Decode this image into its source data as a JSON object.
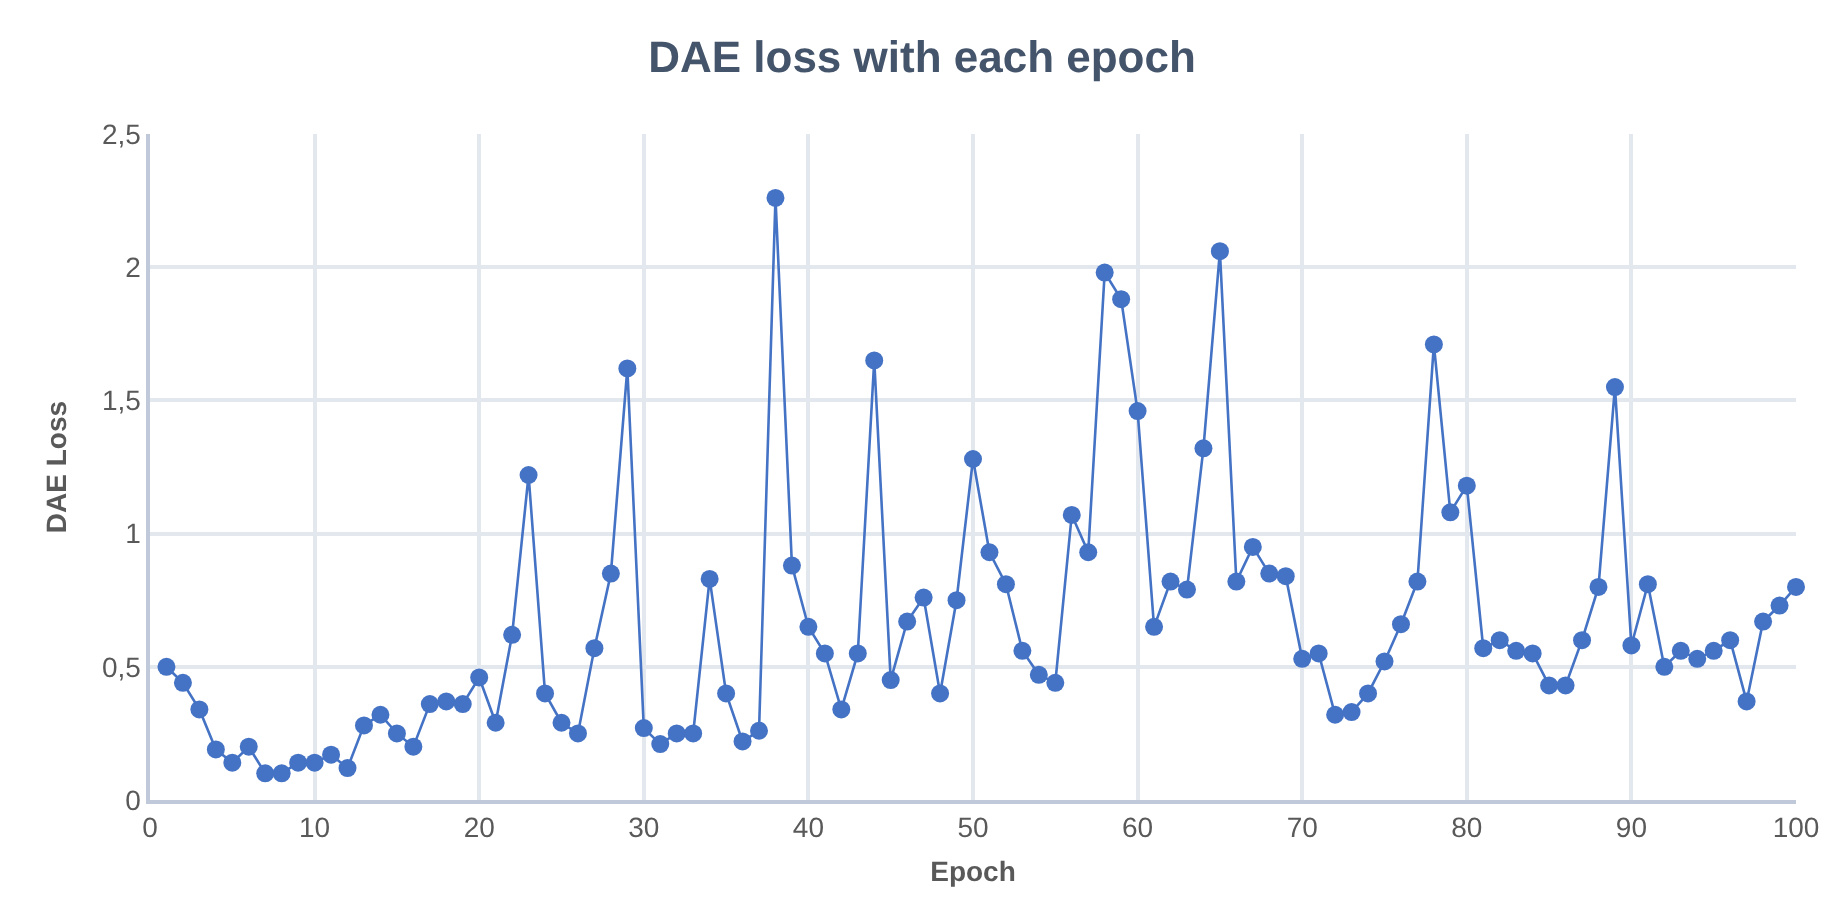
{
  "chart_data": {
    "type": "line",
    "title": "DAE loss with each epoch",
    "xlabel": "Epoch",
    "ylabel": "DAE Loss",
    "x": [
      1,
      2,
      3,
      4,
      5,
      6,
      7,
      8,
      9,
      10,
      11,
      12,
      13,
      14,
      15,
      16,
      17,
      18,
      19,
      20,
      21,
      22,
      23,
      24,
      25,
      26,
      27,
      28,
      29,
      30,
      31,
      32,
      33,
      34,
      35,
      36,
      37,
      38,
      39,
      40,
      41,
      42,
      43,
      44,
      45,
      46,
      47,
      48,
      49,
      50,
      51,
      52,
      53,
      54,
      55,
      56,
      57,
      58,
      59,
      60,
      61,
      62,
      63,
      64,
      65,
      66,
      67,
      68,
      69,
      70,
      71,
      72,
      73,
      74,
      75,
      76,
      77,
      78,
      79,
      80,
      81,
      82,
      83,
      84,
      85,
      86,
      87,
      88,
      89,
      90,
      91,
      92,
      93,
      94,
      95,
      96,
      97,
      98,
      99,
      100
    ],
    "series": [
      {
        "color": "#4472c4",
        "values": [
          0.5,
          0.44,
          0.34,
          0.19,
          0.14,
          0.2,
          0.1,
          0.1,
          0.14,
          0.14,
          0.17,
          0.12,
          0.28,
          0.32,
          0.25,
          0.2,
          0.36,
          0.37,
          0.36,
          0.46,
          0.29,
          0.62,
          1.22,
          0.4,
          0.29,
          0.25,
          0.57,
          0.85,
          1.62,
          0.27,
          0.21,
          0.25,
          0.25,
          0.83,
          0.4,
          0.22,
          0.26,
          2.26,
          0.88,
          0.65,
          0.55,
          0.34,
          0.55,
          1.65,
          0.45,
          0.67,
          0.76,
          0.4,
          0.75,
          1.28,
          0.93,
          0.81,
          0.56,
          0.47,
          0.44,
          1.07,
          0.93,
          1.98,
          1.88,
          1.46,
          0.65,
          0.82,
          0.79,
          1.32,
          2.06,
          0.82,
          0.95,
          0.85,
          0.84,
          0.53,
          0.55,
          0.32,
          0.33,
          0.4,
          0.52,
          0.66,
          0.82,
          1.71,
          1.08,
          1.18,
          0.57,
          0.6,
          0.56,
          0.55,
          0.43,
          0.43,
          0.6,
          0.8,
          1.55,
          0.58,
          0.81,
          0.5,
          0.56,
          0.53,
          0.56,
          0.6,
          0.37,
          0.67,
          0.73,
          0.8
        ]
      }
    ],
    "xlim": [
      0,
      100
    ],
    "xticks": [
      0,
      10,
      20,
      30,
      40,
      50,
      60,
      70,
      80,
      90,
      100
    ],
    "ylim": [
      0,
      2.5
    ],
    "yticks": [
      0,
      {
        "value": 0.5,
        "label": "0,5"
      },
      1,
      {
        "value": 1.5,
        "label": "1,5"
      },
      2,
      {
        "value": 2.5,
        "label": "2,5"
      }
    ],
    "grid": true,
    "marker": "circle",
    "line_style": "solid"
  }
}
